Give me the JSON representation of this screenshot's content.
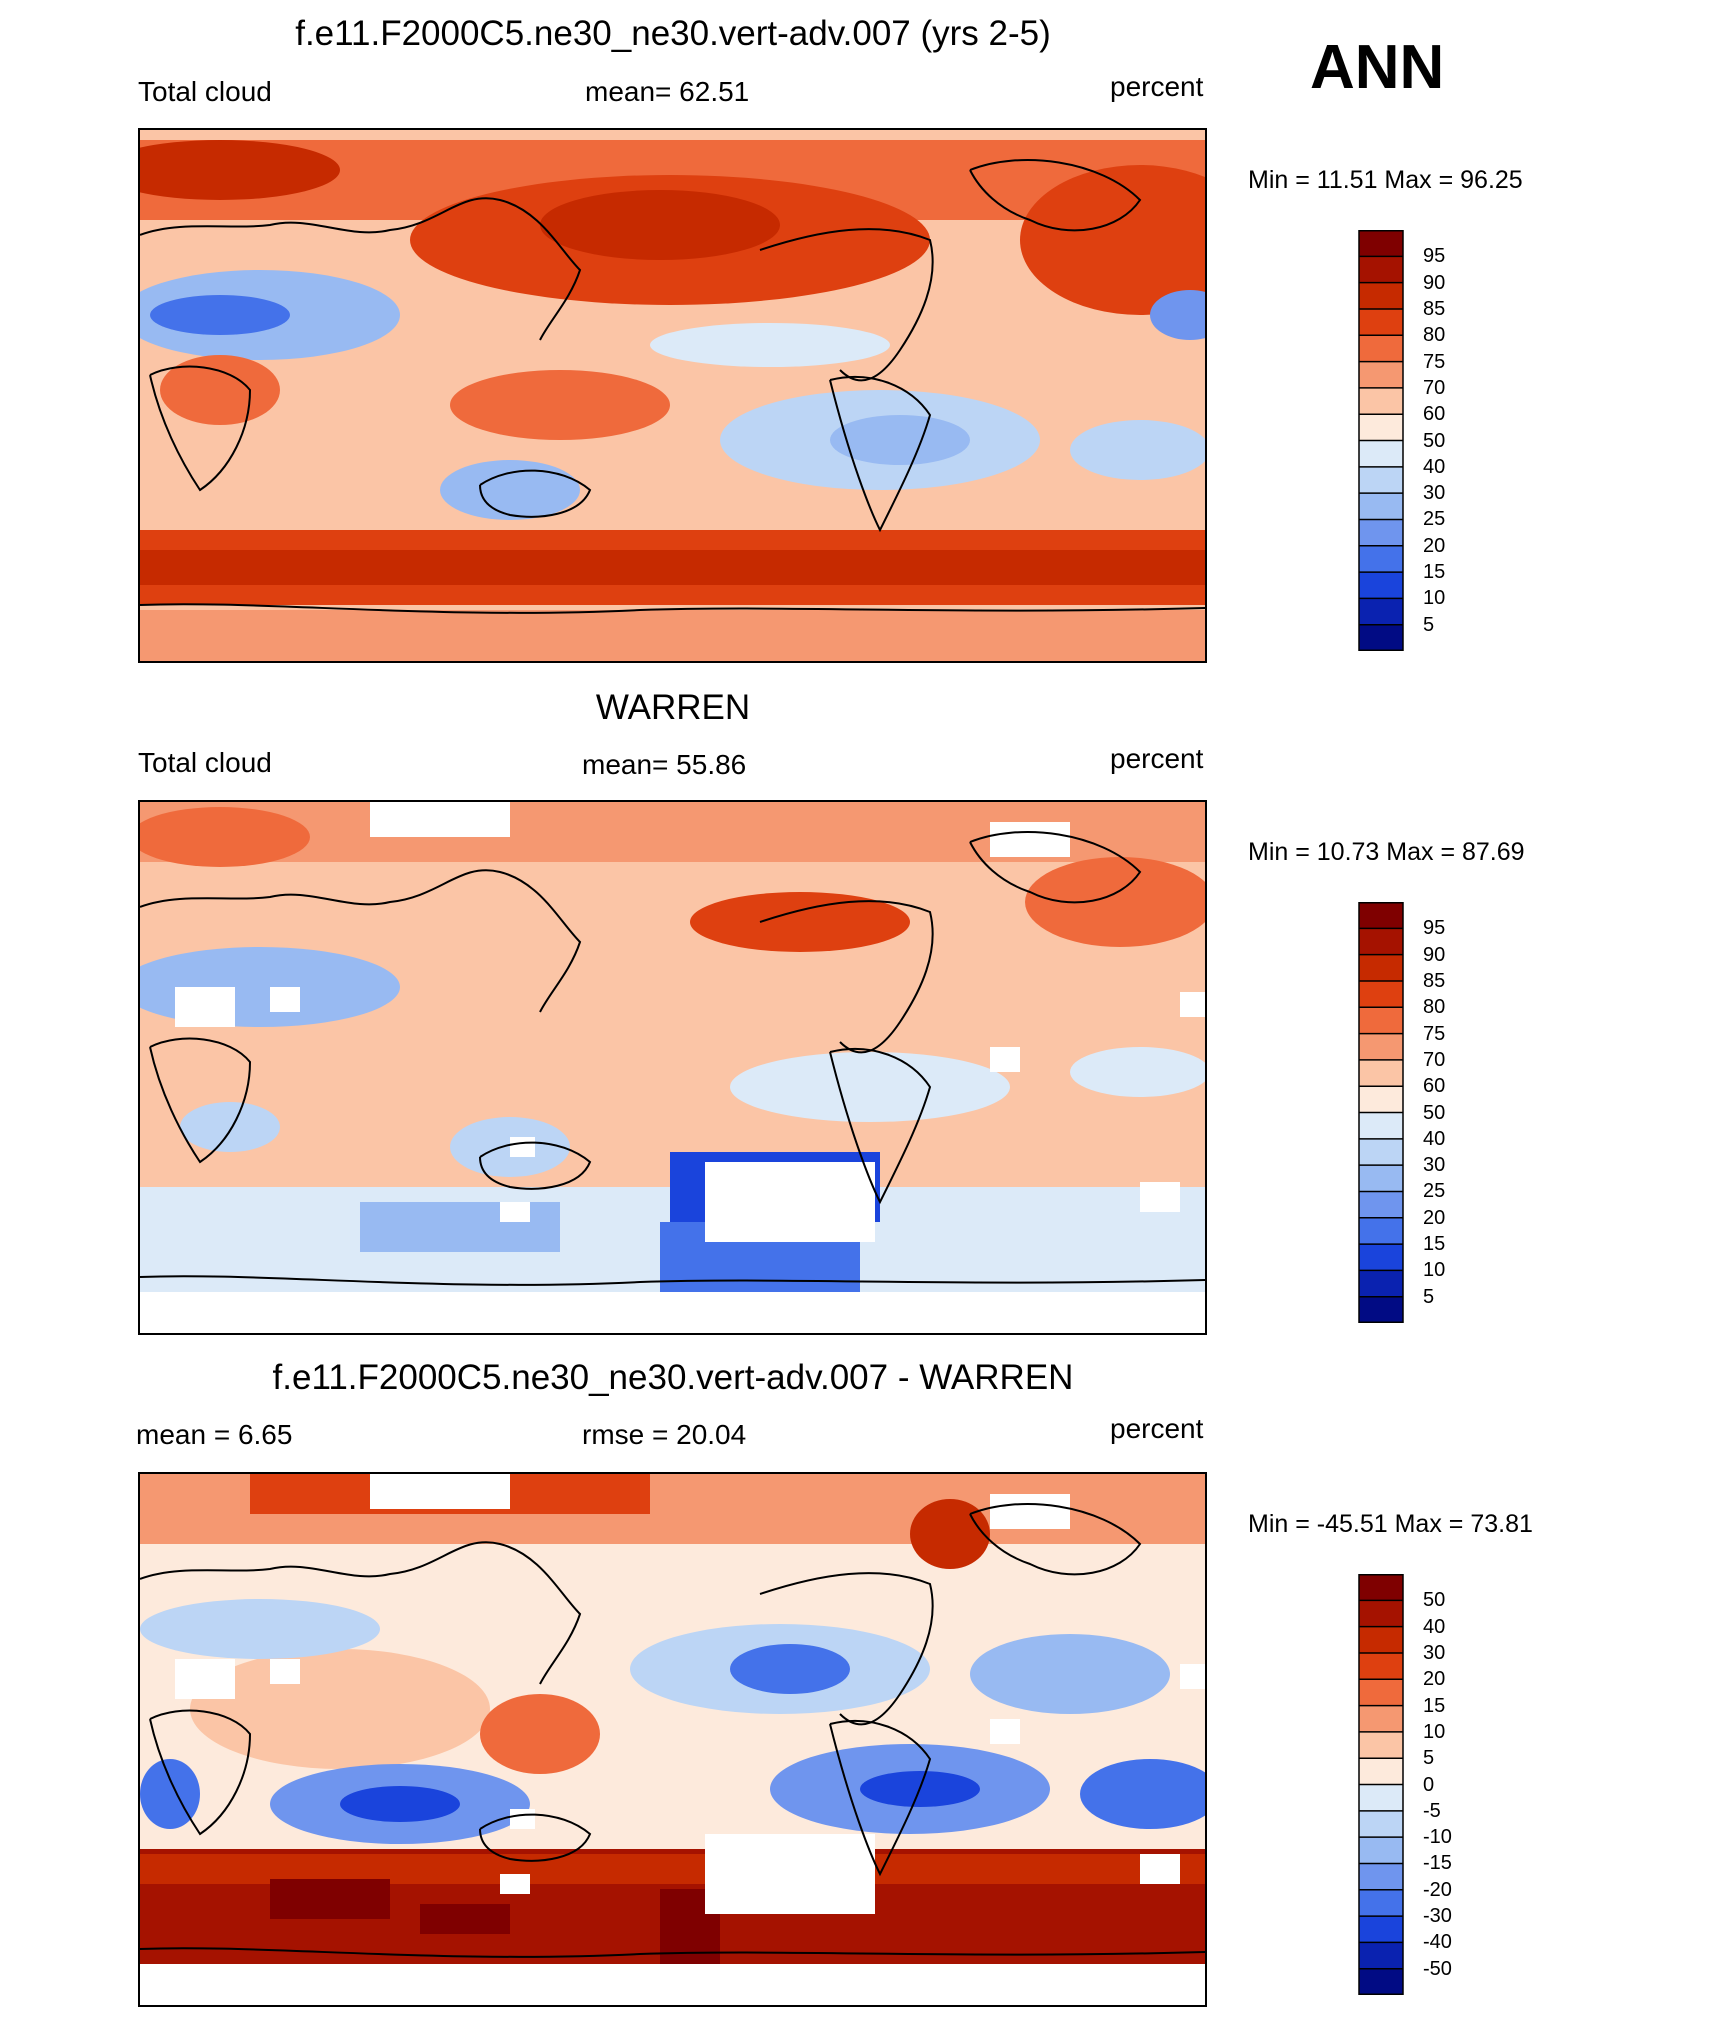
{
  "season": "ANN",
  "panels": [
    {
      "id": "model",
      "title": "f.e11.F2000C5.ne30_ne30.vert-adv.007 (yrs 2-5)",
      "left_label": "Total cloud",
      "center_label": "mean=  62.51",
      "right_label": "percent",
      "minmax": "Min =  11.51 Max =  96.25",
      "colorbar_levels": [
        "95",
        "90",
        "85",
        "80",
        "75",
        "70",
        "60",
        "50",
        "40",
        "30",
        "25",
        "20",
        "15",
        "10",
        "5"
      ]
    },
    {
      "id": "obs",
      "title": "WARREN",
      "left_label": "Total cloud",
      "center_label": "mean=  55.86",
      "right_label": "percent",
      "minmax": "Min =  10.73 Max =  87.69",
      "colorbar_levels": [
        "95",
        "90",
        "85",
        "80",
        "75",
        "70",
        "60",
        "50",
        "40",
        "30",
        "25",
        "20",
        "15",
        "10",
        "5"
      ]
    },
    {
      "id": "diff",
      "title": "f.e11.F2000C5.ne30_ne30.vert-adv.007 - WARREN",
      "left_label": "mean =   6.65",
      "center_label": "rmse =  20.04",
      "right_label": "percent",
      "minmax": "Min = -45.51 Max =  73.81",
      "colorbar_levels": [
        "50",
        "40",
        "30",
        "20",
        "15",
        "10",
        "5",
        "0",
        "-5",
        "-10",
        "-15",
        "-20",
        "-30",
        "-40",
        "-50"
      ]
    }
  ],
  "colors": {
    "palette": [
      "#7f0000",
      "#a51200",
      "#c62a00",
      "#de4010",
      "#ef6a3c",
      "#f59871",
      "#fbc5a6",
      "#fdeadc",
      "#dceaf8",
      "#bcd5f5",
      "#98baf2",
      "#6f95ee",
      "#4472ea",
      "#1a44dc",
      "#0a22b0",
      "#010b84"
    ]
  },
  "chart_data": [
    {
      "type": "heatmap",
      "title": "f.e11.F2000C5.ne30_ne30.vert-adv.007 (yrs 2-5)",
      "variable": "Total cloud",
      "units": "percent",
      "mean": 62.51,
      "min": 11.51,
      "max": 96.25,
      "contour_levels": [
        5,
        10,
        15,
        20,
        25,
        30,
        40,
        50,
        60,
        70,
        75,
        80,
        85,
        90,
        95
      ]
    },
    {
      "type": "heatmap",
      "title": "WARREN",
      "variable": "Total cloud",
      "units": "percent",
      "mean": 55.86,
      "min": 10.73,
      "max": 87.69,
      "contour_levels": [
        5,
        10,
        15,
        20,
        25,
        30,
        40,
        50,
        60,
        70,
        75,
        80,
        85,
        90,
        95
      ]
    },
    {
      "type": "heatmap",
      "title": "f.e11.F2000C5.ne30_ne30.vert-adv.007 - WARREN",
      "units": "percent",
      "mean": 6.65,
      "rmse": 20.04,
      "min": -45.51,
      "max": 73.81,
      "contour_levels": [
        -50,
        -40,
        -30,
        -20,
        -15,
        -10,
        -5,
        0,
        5,
        10,
        15,
        20,
        30,
        40,
        50
      ]
    }
  ]
}
